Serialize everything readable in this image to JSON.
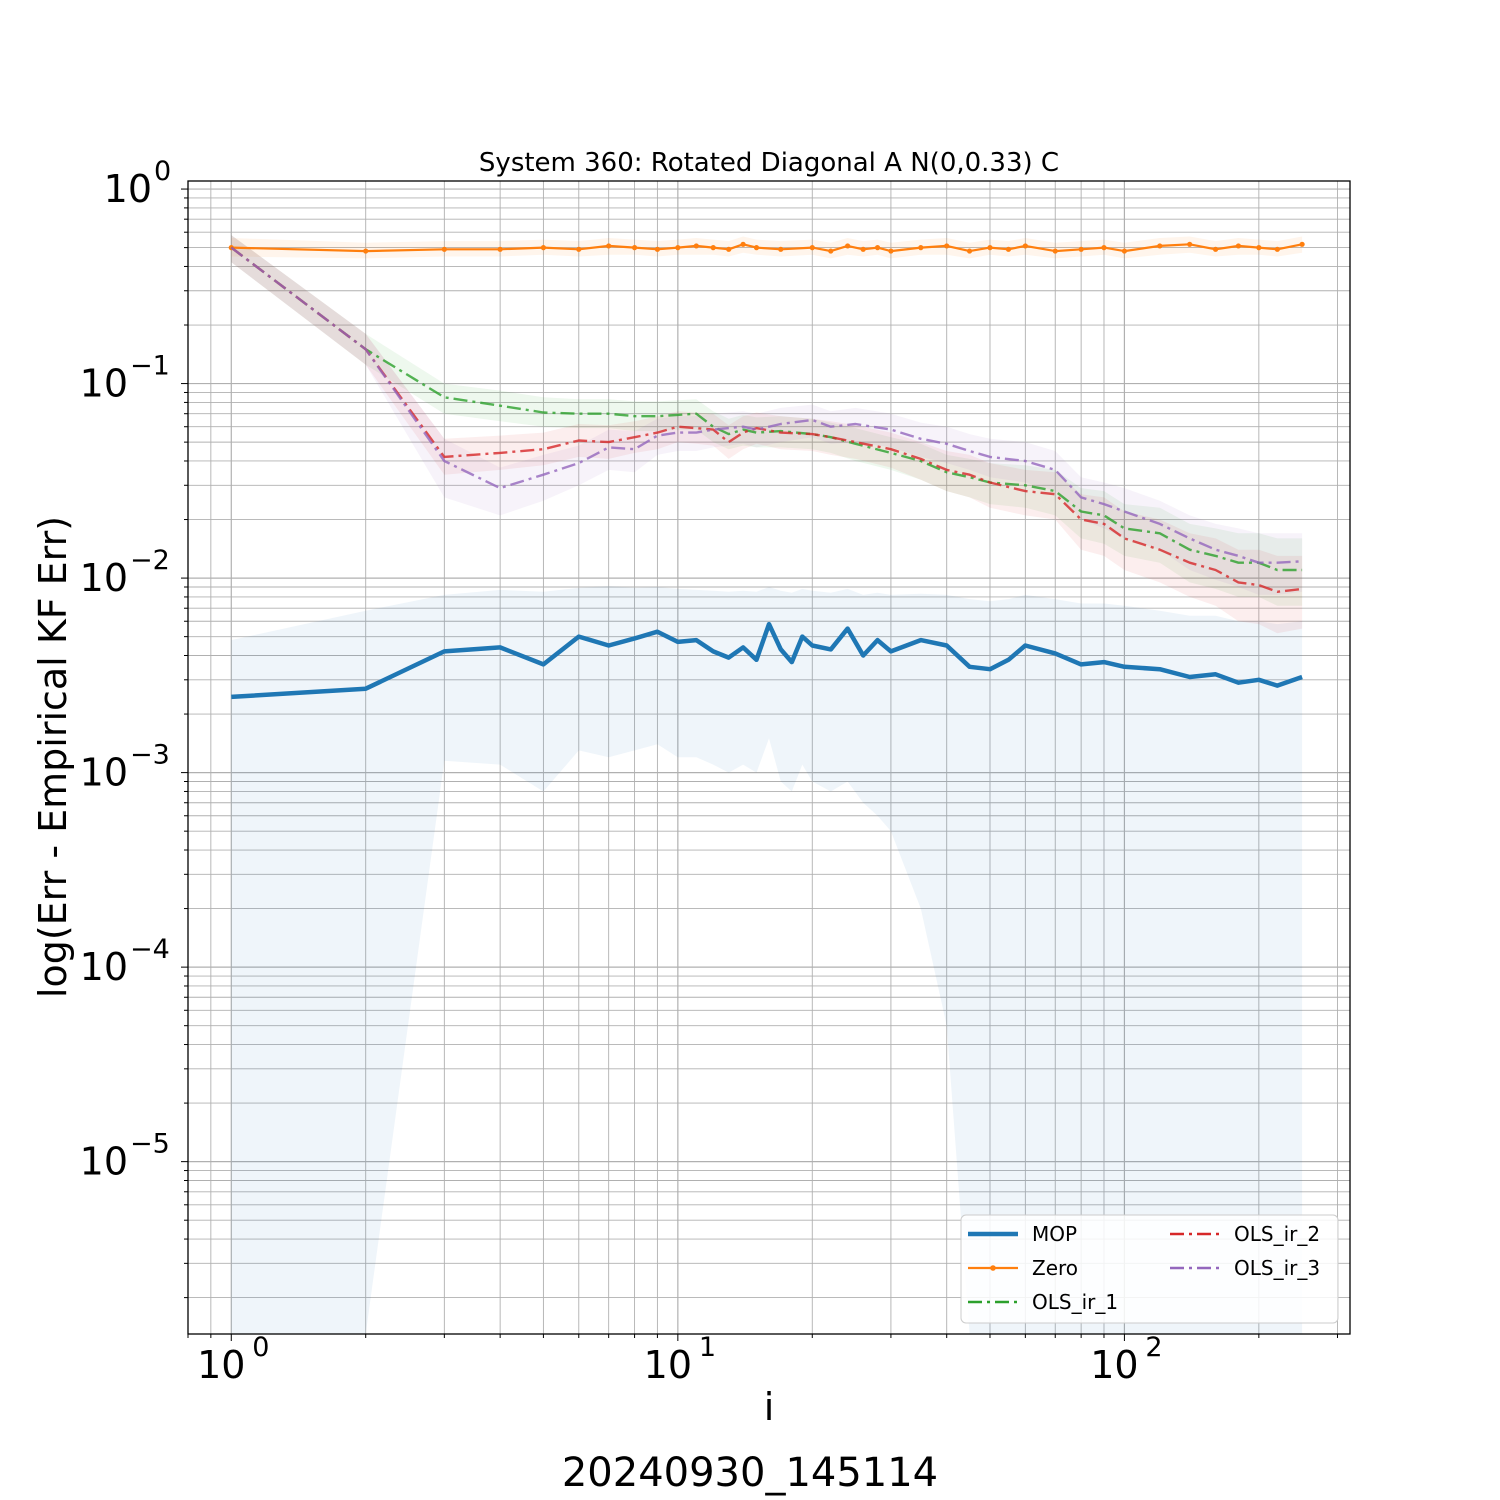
{
  "chart_data": {
    "type": "line",
    "title": "System 360: Rotated Diagonal A N(0,0.33) C",
    "xlabel": "i",
    "ylabel": "log(Err - Empirical KF Err)",
    "footer": "20240930_145114",
    "x_scale": "log",
    "y_scale": "log",
    "xlim": [
      0.8,
      320
    ],
    "ylim": [
      1.3e-06,
      1.1
    ],
    "grid": true,
    "legend_position": "lower-right",
    "x_ticks": [
      {
        "value": 1,
        "base": "10",
        "exp": "0"
      },
      {
        "value": 10,
        "base": "10",
        "exp": "1"
      },
      {
        "value": 100,
        "base": "10",
        "exp": "2"
      }
    ],
    "y_ticks": [
      {
        "value": 1,
        "base": "10",
        "exp": "0"
      },
      {
        "value": 0.1,
        "base": "10",
        "exp": "−1"
      },
      {
        "value": 0.01,
        "base": "10",
        "exp": "−2"
      },
      {
        "value": 0.001,
        "base": "10",
        "exp": "−3"
      },
      {
        "value": 0.0001,
        "base": "10",
        "exp": "−4"
      },
      {
        "value": 1e-05,
        "base": "10",
        "exp": "−5"
      }
    ],
    "series": [
      {
        "name": "MOP",
        "color": "#1f77b4",
        "style": "solid-thick",
        "band": true,
        "x": [
          1,
          2,
          3,
          4,
          5,
          6,
          7,
          8,
          9,
          10,
          11,
          12,
          13,
          14,
          15,
          16,
          17,
          18,
          19,
          20,
          22,
          24,
          26,
          28,
          30,
          35,
          40,
          45,
          50,
          55,
          60,
          70,
          80,
          90,
          100,
          120,
          140,
          160,
          180,
          200,
          220,
          250
        ],
        "y": [
          0.00245,
          0.0027,
          0.0042,
          0.0044,
          0.0036,
          0.005,
          0.0045,
          0.0049,
          0.0053,
          0.0047,
          0.0048,
          0.0042,
          0.0039,
          0.0044,
          0.0038,
          0.0058,
          0.0043,
          0.0037,
          0.005,
          0.0045,
          0.0043,
          0.0055,
          0.004,
          0.0048,
          0.0042,
          0.0048,
          0.0045,
          0.0035,
          0.0034,
          0.0038,
          0.0045,
          0.0041,
          0.0036,
          0.0037,
          0.0035,
          0.0034,
          0.0031,
          0.0032,
          0.0029,
          0.003,
          0.0028,
          0.0031
        ],
        "band_lower": [
          1.3e-06,
          1.3e-06,
          0.00115,
          0.0011,
          0.0008,
          0.0013,
          0.0012,
          0.0013,
          0.0014,
          0.0012,
          0.0012,
          0.0011,
          0.001,
          0.0011,
          0.001,
          0.0015,
          0.0009,
          0.0008,
          0.0011,
          0.0009,
          0.0008,
          0.0009,
          0.0007,
          0.0006,
          0.0005,
          0.0002,
          5e-05,
          1.3e-06,
          1.3e-06,
          1.3e-06,
          1.3e-06,
          1.3e-06,
          1.3e-06,
          1.3e-06,
          1.3e-06,
          1.3e-06,
          1.3e-06,
          1.3e-06,
          1.3e-06,
          1.3e-06,
          1.3e-06,
          1.3e-06
        ],
        "band_upper": [
          0.0048,
          0.0068,
          0.0082,
          0.0087,
          0.0085,
          0.0089,
          0.0091,
          0.0089,
          0.009,
          0.0088,
          0.0087,
          0.0086,
          0.0085,
          0.0086,
          0.0085,
          0.009,
          0.0086,
          0.0084,
          0.0088,
          0.0086,
          0.0084,
          0.0088,
          0.0082,
          0.0084,
          0.0082,
          0.0083,
          0.0082,
          0.0078,
          0.0076,
          0.0078,
          0.0082,
          0.0078,
          0.0074,
          0.0074,
          0.0072,
          0.0068,
          0.0064,
          0.0064,
          0.006,
          0.006,
          0.0058,
          0.006
        ]
      },
      {
        "name": "Zero",
        "color": "#ff7f0e",
        "style": "solid-marker",
        "band": true,
        "x": [
          1,
          2,
          3,
          4,
          5,
          6,
          7,
          8,
          9,
          10,
          11,
          12,
          13,
          14,
          15,
          17,
          20,
          22,
          24,
          26,
          28,
          30,
          35,
          40,
          45,
          50,
          55,
          60,
          70,
          80,
          90,
          100,
          120,
          140,
          160,
          180,
          200,
          220,
          250
        ],
        "y": [
          0.5,
          0.48,
          0.49,
          0.49,
          0.5,
          0.49,
          0.51,
          0.5,
          0.49,
          0.5,
          0.51,
          0.5,
          0.49,
          0.52,
          0.5,
          0.49,
          0.5,
          0.48,
          0.51,
          0.49,
          0.5,
          0.48,
          0.5,
          0.51,
          0.48,
          0.5,
          0.49,
          0.51,
          0.48,
          0.49,
          0.5,
          0.48,
          0.51,
          0.52,
          0.49,
          0.51,
          0.5,
          0.49,
          0.52
        ],
        "band_lower": [
          0.45,
          0.44,
          0.45,
          0.45,
          0.46,
          0.45,
          0.46,
          0.46,
          0.45,
          0.46,
          0.46,
          0.46,
          0.45,
          0.47,
          0.46,
          0.45,
          0.46,
          0.44,
          0.46,
          0.45,
          0.46,
          0.44,
          0.46,
          0.46,
          0.44,
          0.46,
          0.45,
          0.46,
          0.44,
          0.45,
          0.46,
          0.44,
          0.46,
          0.47,
          0.45,
          0.46,
          0.46,
          0.45,
          0.47
        ],
        "band_upper": [
          0.56,
          0.53,
          0.54,
          0.54,
          0.55,
          0.54,
          0.56,
          0.55,
          0.54,
          0.55,
          0.56,
          0.55,
          0.54,
          0.57,
          0.55,
          0.54,
          0.55,
          0.53,
          0.56,
          0.54,
          0.55,
          0.53,
          0.55,
          0.56,
          0.53,
          0.55,
          0.54,
          0.56,
          0.53,
          0.54,
          0.55,
          0.53,
          0.56,
          0.57,
          0.54,
          0.56,
          0.55,
          0.54,
          0.57
        ]
      },
      {
        "name": "OLS_ir_1",
        "color": "#2ca02c",
        "style": "dashdot",
        "band": true,
        "x": [
          1,
          2,
          3,
          4,
          5,
          6,
          7,
          8,
          9,
          10,
          11,
          12,
          13,
          14,
          15,
          17,
          20,
          22,
          25,
          30,
          35,
          40,
          45,
          50,
          60,
          70,
          80,
          90,
          100,
          120,
          140,
          160,
          180,
          200,
          220,
          250
        ],
        "y": [
          0.5,
          0.15,
          0.085,
          0.077,
          0.071,
          0.07,
          0.07,
          0.068,
          0.068,
          0.069,
          0.07,
          0.06,
          0.055,
          0.058,
          0.056,
          0.057,
          0.055,
          0.053,
          0.049,
          0.044,
          0.04,
          0.035,
          0.033,
          0.031,
          0.03,
          0.028,
          0.022,
          0.021,
          0.018,
          0.017,
          0.014,
          0.013,
          0.012,
          0.012,
          0.011,
          0.011
        ],
        "band_lower": [
          0.42,
          0.125,
          0.07,
          0.064,
          0.06,
          0.059,
          0.059,
          0.057,
          0.057,
          0.058,
          0.058,
          0.05,
          0.046,
          0.048,
          0.047,
          0.047,
          0.046,
          0.044,
          0.04,
          0.036,
          0.032,
          0.028,
          0.026,
          0.024,
          0.023,
          0.021,
          0.016,
          0.015,
          0.013,
          0.012,
          0.0095,
          0.0088,
          0.008,
          0.008,
          0.0072,
          0.0072
        ],
        "band_upper": [
          0.58,
          0.18,
          0.1,
          0.092,
          0.085,
          0.083,
          0.083,
          0.081,
          0.081,
          0.082,
          0.083,
          0.072,
          0.066,
          0.069,
          0.067,
          0.068,
          0.066,
          0.063,
          0.059,
          0.053,
          0.049,
          0.043,
          0.041,
          0.039,
          0.038,
          0.036,
          0.029,
          0.028,
          0.024,
          0.023,
          0.019,
          0.018,
          0.017,
          0.017,
          0.016,
          0.016
        ]
      },
      {
        "name": "OLS_ir_2",
        "color": "#d62728",
        "style": "dashdot",
        "band": true,
        "x": [
          1,
          2,
          3,
          4,
          5,
          6,
          7,
          8,
          9,
          10,
          11,
          12,
          13,
          14,
          15,
          17,
          20,
          22,
          25,
          30,
          35,
          40,
          45,
          50,
          60,
          70,
          80,
          90,
          100,
          120,
          140,
          160,
          180,
          200,
          220,
          250
        ],
        "y": [
          0.5,
          0.15,
          0.042,
          0.044,
          0.046,
          0.051,
          0.05,
          0.053,
          0.056,
          0.06,
          0.059,
          0.058,
          0.05,
          0.056,
          0.059,
          0.056,
          0.055,
          0.053,
          0.05,
          0.046,
          0.041,
          0.036,
          0.034,
          0.031,
          0.028,
          0.027,
          0.02,
          0.019,
          0.016,
          0.014,
          0.012,
          0.011,
          0.0095,
          0.0092,
          0.0085,
          0.0088
        ],
        "band_lower": [
          0.42,
          0.125,
          0.034,
          0.036,
          0.038,
          0.042,
          0.041,
          0.044,
          0.046,
          0.05,
          0.049,
          0.048,
          0.041,
          0.046,
          0.049,
          0.046,
          0.045,
          0.043,
          0.041,
          0.037,
          0.032,
          0.028,
          0.026,
          0.023,
          0.021,
          0.02,
          0.014,
          0.013,
          0.011,
          0.0095,
          0.008,
          0.0072,
          0.006,
          0.0058,
          0.0052,
          0.0055
        ],
        "band_upper": [
          0.58,
          0.18,
          0.052,
          0.054,
          0.056,
          0.062,
          0.061,
          0.064,
          0.068,
          0.072,
          0.071,
          0.07,
          0.061,
          0.068,
          0.071,
          0.068,
          0.066,
          0.064,
          0.061,
          0.056,
          0.05,
          0.045,
          0.043,
          0.039,
          0.036,
          0.035,
          0.027,
          0.026,
          0.022,
          0.02,
          0.017,
          0.016,
          0.014,
          0.014,
          0.013,
          0.013
        ]
      },
      {
        "name": "OLS_ir_3",
        "color": "#9467bd",
        "style": "dashdot",
        "band": true,
        "x": [
          1,
          2,
          3,
          4,
          5,
          6,
          7,
          8,
          9,
          10,
          11,
          12,
          13,
          14,
          15,
          17,
          20,
          22,
          25,
          30,
          35,
          40,
          45,
          50,
          60,
          70,
          80,
          90,
          100,
          120,
          140,
          160,
          180,
          200,
          220,
          250
        ],
        "y": [
          0.5,
          0.15,
          0.04,
          0.029,
          0.034,
          0.039,
          0.047,
          0.046,
          0.054,
          0.056,
          0.056,
          0.058,
          0.059,
          0.06,
          0.058,
          0.062,
          0.065,
          0.06,
          0.062,
          0.058,
          0.052,
          0.049,
          0.045,
          0.042,
          0.04,
          0.036,
          0.026,
          0.024,
          0.022,
          0.019,
          0.016,
          0.014,
          0.013,
          0.012,
          0.012,
          0.0122
        ],
        "band_lower": [
          0.42,
          0.125,
          0.026,
          0.021,
          0.025,
          0.03,
          0.036,
          0.035,
          0.043,
          0.045,
          0.045,
          0.047,
          0.048,
          0.049,
          0.047,
          0.05,
          0.053,
          0.049,
          0.05,
          0.047,
          0.042,
          0.039,
          0.036,
          0.033,
          0.031,
          0.028,
          0.02,
          0.018,
          0.016,
          0.014,
          0.011,
          0.0098,
          0.009,
          0.0082,
          0.0082,
          0.0085
        ],
        "band_upper": [
          0.58,
          0.18,
          0.052,
          0.037,
          0.043,
          0.048,
          0.058,
          0.057,
          0.066,
          0.068,
          0.068,
          0.07,
          0.071,
          0.072,
          0.07,
          0.075,
          0.078,
          0.072,
          0.075,
          0.07,
          0.063,
          0.06,
          0.055,
          0.052,
          0.05,
          0.045,
          0.033,
          0.031,
          0.029,
          0.025,
          0.021,
          0.019,
          0.018,
          0.017,
          0.017,
          0.017
        ]
      }
    ]
  }
}
